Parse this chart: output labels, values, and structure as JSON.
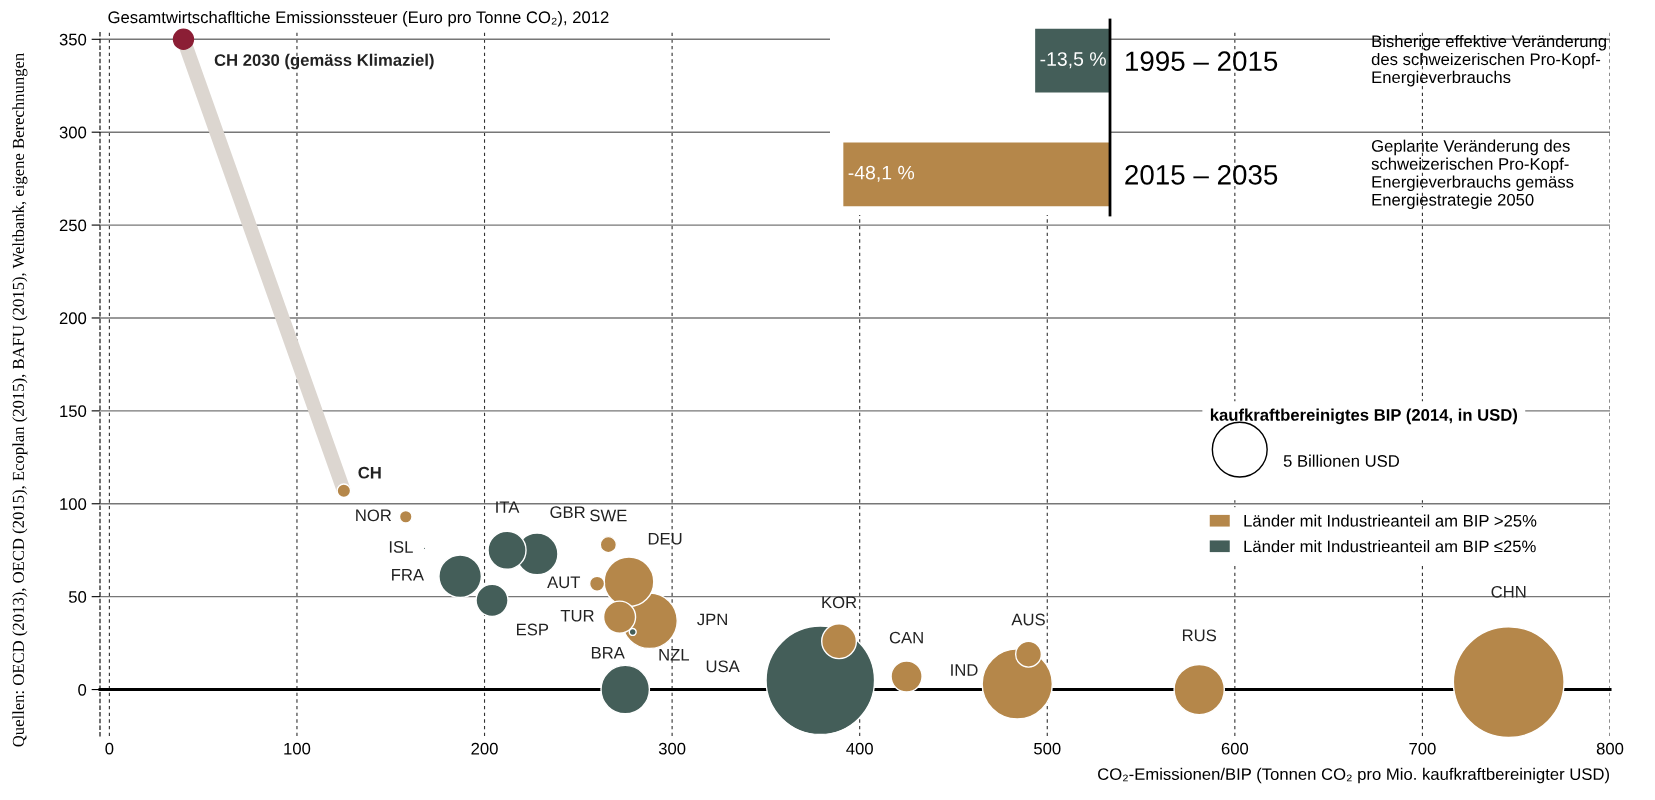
{
  "chart_data": [
    {
      "type": "bubble",
      "ylabel": "Gesamtwirtschafltiche Emissionssteuer (Euro pro Tonne CO₂), 2012",
      "xlabel": "CO₂-Emissionen/BIP (Tonnen CO₂ pro Mio. kaufkraftbereinigter USD)",
      "xlim": [
        -5,
        800
      ],
      "xticks": [
        0,
        100,
        200,
        300,
        400,
        500,
        600,
        700,
        800
      ],
      "ylim": [
        -25,
        355
      ],
      "yticks": [
        0,
        50,
        100,
        150,
        200,
        250,
        300,
        350
      ],
      "grid": true,
      "legend": "right",
      "legend_title": "kaufkraftbereinigtes BIP (2014, in USD)",
      "size_legend": [
        {
          "value": 5,
          "label": "5 Billionen USD"
        }
      ],
      "series": [
        {
          "type": "line",
          "color": "#dcd6d0",
          "x": [
            39.5,
            125
          ],
          "values": [
            350,
            107
          ]
        },
        {
          "type": "scatter",
          "color": "#8b1e35",
          "x": [
            39.5
          ],
          "values": [
            350
          ]
        },
        {
          "name": "Länder mit Industrieanteil am BIP >25%",
          "color": "#b5874a",
          "x": [
            125,
            158,
            266,
            260,
            277,
            272,
            288,
            389,
            425,
            484,
            490,
            581,
            746
          ],
          "values": [
            107,
            93,
            78,
            57,
            58,
            39,
            37,
            26,
            7,
            3,
            19,
            0,
            4
          ],
          "sizes": [
            0.3,
            0.26,
            0.43,
            0.37,
            4.1,
            1.7,
            5.1,
            2.0,
            1.6,
            8.2,
            1.1,
            4.2,
            20.4
          ]
        },
        {
          "name": "Länder mit Industrieanteil am BIP ≤25%",
          "color": "#445e59",
          "x": [
            168,
            212,
            228,
            187,
            204,
            279,
            275,
            379
          ],
          "values": [
            76,
            75,
            73,
            61,
            48,
            31,
            0,
            5
          ],
          "sizes": [
            0.01,
            2.4,
            2.9,
            3.0,
            1.7,
            0.08,
            3.9,
            19.6
          ]
        }
      ],
      "annotations": [
        {
          "text": "CH 2030 (gemäss Klimaziel)",
          "x": 39.5,
          "y": 350
        },
        {
          "text": "CH",
          "x": 125,
          "y": 107
        },
        {
          "text": "NOR",
          "x": 158,
          "y": 93
        },
        {
          "text": "ISL",
          "x": 168,
          "y": 76
        },
        {
          "text": "ITA",
          "x": 212,
          "y": 75
        },
        {
          "text": "GBR",
          "x": 228,
          "y": 73
        },
        {
          "text": "FRA",
          "x": 187,
          "y": 61
        },
        {
          "text": "ESP",
          "x": 204,
          "y": 48
        },
        {
          "text": "SWE",
          "x": 266,
          "y": 78
        },
        {
          "text": "DEU",
          "x": 277,
          "y": 58
        },
        {
          "text": "AUT",
          "x": 260,
          "y": 57
        },
        {
          "text": "TUR",
          "x": 272,
          "y": 39
        },
        {
          "text": "BRA",
          "x": 279,
          "y": 31
        },
        {
          "text": "JPN",
          "x": 288,
          "y": 37
        },
        {
          "text": "NZL",
          "x": 275,
          "y": 0
        },
        "USA",
        {
          "text": "KOR",
          "x": 389,
          "y": 26
        },
        {
          "text": "CAN",
          "x": 425,
          "y": 7
        },
        {
          "text": "IND",
          "x": 484,
          "y": 3
        },
        {
          "text": "AUS",
          "x": 490,
          "y": 19
        },
        {
          "text": "RUS",
          "x": 581,
          "y": 0
        },
        "CHN",
        "Quellen: OECD (2013), OECD (2015), Ecoplan (2015), BAFU (2015), Weltbank, eigene Berechnungen"
      ]
    },
    {
      "type": "bar",
      "orientation": "horizontal",
      "categories": [
        "1995 – 2015",
        "2015 – 2035"
      ],
      "values": [
        -13.5,
        -48.1
      ],
      "colors": [
        "#445e59",
        "#b5874a"
      ],
      "value_labels": [
        "-13,5 %",
        "-48,1 %"
      ],
      "tick_labels": "y",
      "annotations": [
        "Bisherige effektive Veränderung\ndes schweizerischen Pro-Kopf-\nEnergieverbrauchs",
        "Geplante Veränderung des\nschweizerischen Pro-Kopf-\nEnergieverbrauchs gemäss\nEnergiestrategie 2050"
      ]
    }
  ]
}
